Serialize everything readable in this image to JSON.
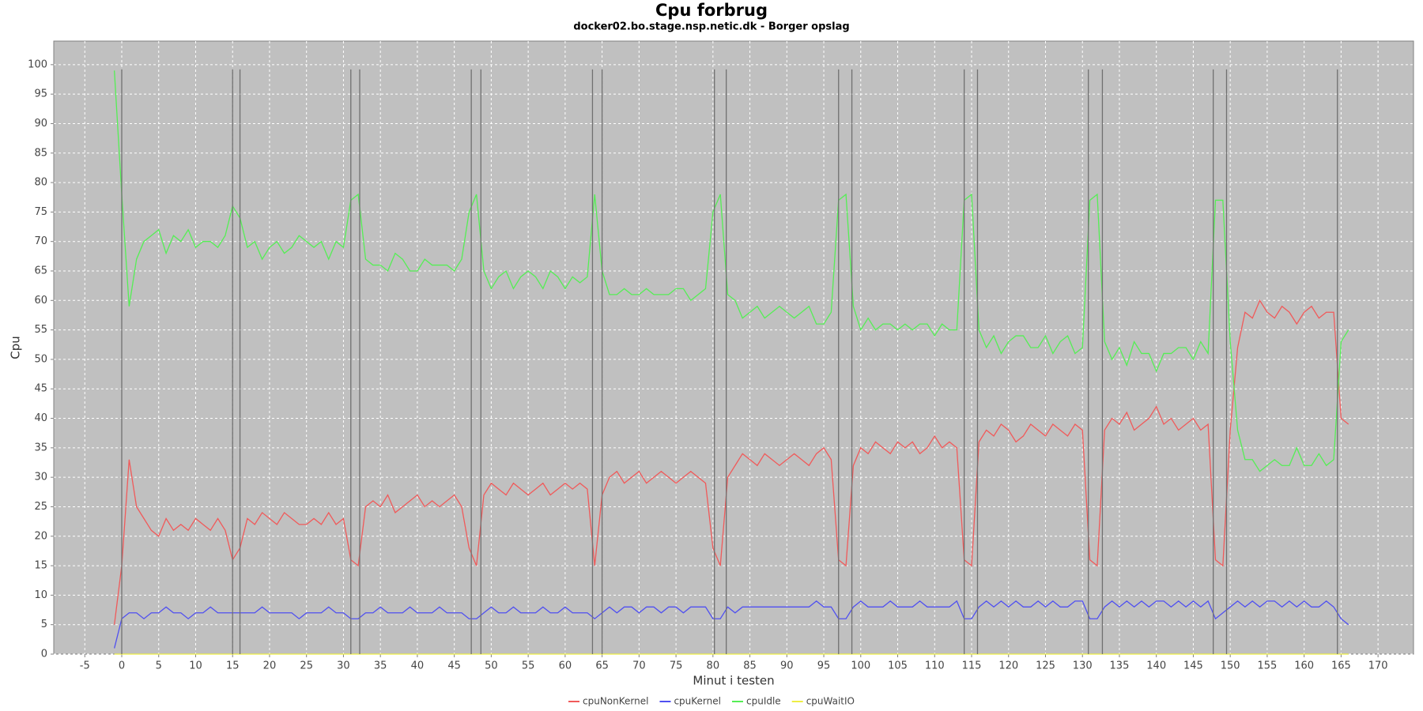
{
  "chart_data": {
    "type": "line",
    "title": "Cpu forbrug",
    "subtitle": "docker02.bo.stage.nsp.netic.dk - Borger opslag",
    "xlabel": "Minut i testen",
    "ylabel": "Cpu",
    "xlim": [
      -9.2,
      174.8
    ],
    "ylim": [
      0,
      104
    ],
    "xticks": [
      -5,
      0,
      5,
      10,
      15,
      20,
      25,
      30,
      35,
      40,
      45,
      50,
      55,
      60,
      65,
      70,
      75,
      80,
      85,
      90,
      95,
      100,
      105,
      110,
      115,
      120,
      125,
      130,
      135,
      140,
      145,
      150,
      155,
      160,
      165,
      170
    ],
    "yticks": [
      0,
      5,
      10,
      15,
      20,
      25,
      30,
      35,
      40,
      45,
      50,
      55,
      60,
      65,
      70,
      75,
      80,
      85,
      90,
      95,
      100
    ],
    "grid": true,
    "markers": [
      0,
      15,
      16,
      31,
      32.2,
      47.3,
      48.6,
      63.7,
      65,
      80.2,
      81.8,
      97,
      98.8,
      114,
      115.8,
      130.8,
      132.7,
      147.7,
      149.5,
      164.5
    ],
    "x": [
      -1,
      0,
      1,
      2,
      3,
      4,
      5,
      6,
      7,
      8,
      9,
      10,
      11,
      12,
      13,
      14,
      15,
      16,
      17,
      18,
      19,
      20,
      21,
      22,
      23,
      24,
      25,
      26,
      27,
      28,
      29,
      30,
      31,
      32,
      33,
      34,
      35,
      36,
      37,
      38,
      39,
      40,
      41,
      42,
      43,
      44,
      45,
      46,
      47,
      48,
      49,
      50,
      51,
      52,
      53,
      54,
      55,
      56,
      57,
      58,
      59,
      60,
      61,
      62,
      63,
      64,
      65,
      66,
      67,
      68,
      69,
      70,
      71,
      72,
      73,
      74,
      75,
      76,
      77,
      78,
      79,
      80,
      81,
      82,
      83,
      84,
      85,
      86,
      87,
      88,
      89,
      90,
      91,
      92,
      93,
      94,
      95,
      96,
      97,
      98,
      99,
      100,
      101,
      102,
      103,
      104,
      105,
      106,
      107,
      108,
      109,
      110,
      111,
      112,
      113,
      114,
      115,
      116,
      117,
      118,
      119,
      120,
      121,
      122,
      123,
      124,
      125,
      126,
      127,
      128,
      129,
      130,
      131,
      132,
      133,
      134,
      135,
      136,
      137,
      138,
      139,
      140,
      141,
      142,
      143,
      144,
      145,
      146,
      147,
      148,
      149,
      150,
      151,
      152,
      153,
      154,
      155,
      156,
      157,
      158,
      159,
      160,
      161,
      162,
      163,
      164,
      165,
      166
    ],
    "series": [
      {
        "name": "cpuNonKernel",
        "color": "#f05a5a",
        "values": [
          5,
          15,
          33,
          25,
          23,
          21,
          20,
          23,
          21,
          22,
          21,
          23,
          22,
          21,
          23,
          21,
          16,
          18,
          23,
          22,
          24,
          23,
          22,
          24,
          23,
          22,
          22,
          23,
          22,
          24,
          22,
          23,
          16,
          15,
          25,
          26,
          25,
          27,
          24,
          25,
          26,
          27,
          25,
          26,
          25,
          26,
          27,
          25,
          18,
          15,
          27,
          29,
          28,
          27,
          29,
          28,
          27,
          28,
          29,
          27,
          28,
          29,
          28,
          29,
          28,
          15,
          27,
          30,
          31,
          29,
          30,
          31,
          29,
          30,
          31,
          30,
          29,
          30,
          31,
          30,
          29,
          18,
          15,
          30,
          32,
          34,
          33,
          32,
          34,
          33,
          32,
          33,
          34,
          33,
          32,
          34,
          35,
          33,
          16,
          15,
          32,
          35,
          34,
          36,
          35,
          34,
          36,
          35,
          36,
          34,
          35,
          37,
          35,
          36,
          35,
          16,
          15,
          36,
          38,
          37,
          39,
          38,
          36,
          37,
          39,
          38,
          37,
          39,
          38,
          37,
          39,
          38,
          16,
          15,
          38,
          40,
          39,
          41,
          38,
          39,
          40,
          42,
          39,
          40,
          38,
          39,
          40,
          38,
          39,
          16,
          15,
          38,
          52,
          58,
          57,
          60,
          58,
          57,
          59,
          58,
          56,
          58,
          59,
          57,
          58,
          58,
          40,
          39
        ]
      },
      {
        "name": "cpuKernel",
        "color": "#5050f0",
        "values": [
          1,
          6,
          7,
          7,
          6,
          7,
          7,
          8,
          7,
          7,
          6,
          7,
          7,
          8,
          7,
          7,
          7,
          7,
          7,
          7,
          8,
          7,
          7,
          7,
          7,
          6,
          7,
          7,
          7,
          8,
          7,
          7,
          6,
          6,
          7,
          7,
          8,
          7,
          7,
          7,
          8,
          7,
          7,
          7,
          8,
          7,
          7,
          7,
          6,
          6,
          7,
          8,
          7,
          7,
          8,
          7,
          7,
          7,
          8,
          7,
          7,
          8,
          7,
          7,
          7,
          6,
          7,
          8,
          7,
          8,
          8,
          7,
          8,
          8,
          7,
          8,
          8,
          7,
          8,
          8,
          8,
          6,
          6,
          8,
          7,
          8,
          8,
          8,
          8,
          8,
          8,
          8,
          8,
          8,
          8,
          9,
          8,
          8,
          6,
          6,
          8,
          9,
          8,
          8,
          8,
          9,
          8,
          8,
          8,
          9,
          8,
          8,
          8,
          8,
          9,
          6,
          6,
          8,
          9,
          8,
          9,
          8,
          9,
          8,
          8,
          9,
          8,
          9,
          8,
          8,
          9,
          9,
          6,
          6,
          8,
          9,
          8,
          9,
          8,
          9,
          8,
          9,
          9,
          8,
          9,
          8,
          9,
          8,
          9,
          6,
          7,
          8,
          9,
          8,
          9,
          8,
          9,
          9,
          8,
          9,
          8,
          9,
          8,
          8,
          9,
          8,
          6,
          5
        ]
      },
      {
        "name": "cpuIdle",
        "color": "#55ee55",
        "values": [
          99,
          78,
          59,
          67,
          70,
          71,
          72,
          68,
          71,
          70,
          72,
          69,
          70,
          70,
          69,
          71,
          76,
          74,
          69,
          70,
          67,
          69,
          70,
          68,
          69,
          71,
          70,
          69,
          70,
          67,
          70,
          69,
          77,
          78,
          67,
          66,
          66,
          65,
          68,
          67,
          65,
          65,
          67,
          66,
          66,
          66,
          65,
          67,
          75,
          78,
          65,
          62,
          64,
          65,
          62,
          64,
          65,
          64,
          62,
          65,
          64,
          62,
          64,
          63,
          64,
          78,
          65,
          61,
          61,
          62,
          61,
          61,
          62,
          61,
          61,
          61,
          62,
          62,
          60,
          61,
          62,
          75,
          78,
          61,
          60,
          57,
          58,
          59,
          57,
          58,
          59,
          58,
          57,
          58,
          59,
          56,
          56,
          58,
          77,
          78,
          59,
          55,
          57,
          55,
          56,
          56,
          55,
          56,
          55,
          56,
          56,
          54,
          56,
          55,
          55,
          77,
          78,
          55,
          52,
          54,
          51,
          53,
          54,
          54,
          52,
          52,
          54,
          51,
          53,
          54,
          51,
          52,
          77,
          78,
          53,
          50,
          52,
          49,
          53,
          51,
          51,
          48,
          51,
          51,
          52,
          52,
          50,
          53,
          51,
          77,
          77,
          53,
          38,
          33,
          33,
          31,
          32,
          33,
          32,
          32,
          35,
          32,
          32,
          34,
          32,
          33,
          53,
          55
        ]
      },
      {
        "name": "cpuWaitIO",
        "color": "#eeee44",
        "values": [
          0,
          0,
          0,
          0,
          0,
          0,
          0,
          0,
          0,
          0,
          0,
          0,
          0,
          0,
          0,
          0,
          0,
          0,
          0,
          0,
          0,
          0,
          0,
          0,
          0,
          0,
          0,
          0,
          0,
          0,
          0,
          0,
          0,
          0,
          0,
          0,
          0,
          0,
          0,
          0,
          0,
          0,
          0,
          0,
          0,
          0,
          0,
          0,
          0,
          0,
          0,
          0,
          0,
          0,
          0,
          0,
          0,
          0,
          0,
          0,
          0,
          0,
          0,
          0,
          0,
          0,
          0,
          0,
          0,
          0,
          0,
          0,
          0,
          0,
          0,
          0,
          0,
          0,
          0,
          0,
          0,
          0,
          0,
          0,
          0,
          0,
          0,
          0,
          0,
          0,
          0,
          0,
          0,
          0,
          0,
          0,
          0,
          0,
          0,
          0,
          0,
          0,
          0,
          0,
          0,
          0,
          0,
          0,
          0,
          0,
          0,
          0,
          0,
          0,
          0,
          0,
          0,
          0,
          0,
          0,
          0,
          0,
          0,
          0,
          0,
          0,
          0,
          0,
          0,
          0,
          0,
          0,
          0,
          0,
          0,
          0,
          0,
          0,
          0,
          0,
          0,
          0,
          0,
          0,
          0,
          0,
          0,
          0,
          0,
          0,
          0,
          0,
          0,
          0,
          0,
          0,
          0,
          0,
          0,
          0,
          0,
          0,
          0,
          0,
          0,
          0,
          0,
          0
        ]
      }
    ]
  }
}
